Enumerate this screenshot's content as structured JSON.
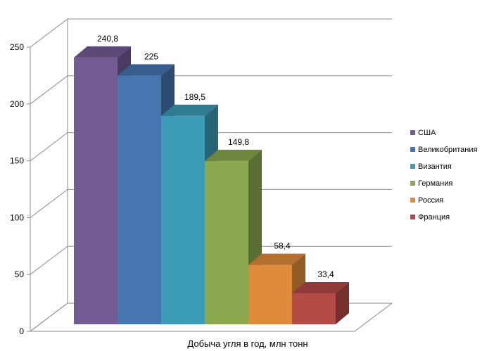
{
  "chart_data": {
    "type": "bar",
    "variant": "3d-clustered-column",
    "title": "",
    "xlabel": "Добыча угля в год, млн тонн",
    "ylabel": "",
    "ylim": [
      0,
      250
    ],
    "y_ticks": [
      0,
      50,
      100,
      150,
      200,
      250
    ],
    "grid": true,
    "legend_position": "right",
    "series": [
      {
        "name": "США",
        "value": 240.8,
        "label": "240,8",
        "color": "#735b93"
      },
      {
        "name": "Великобритания",
        "value": 225,
        "label": "225",
        "color": "#4675b0"
      },
      {
        "name": "Византия",
        "value": 189.5,
        "label": "189,5",
        "color": "#3c9bb6"
      },
      {
        "name": "Германия",
        "value": 149.8,
        "label": "149,8",
        "color": "#8aa84e"
      },
      {
        "name": "Россия",
        "value": 58.4,
        "label": "58,4",
        "color": "#e08a3c"
      },
      {
        "name": "Франция",
        "value": 33.4,
        "label": "33,4",
        "color": "#b44a45"
      }
    ]
  }
}
